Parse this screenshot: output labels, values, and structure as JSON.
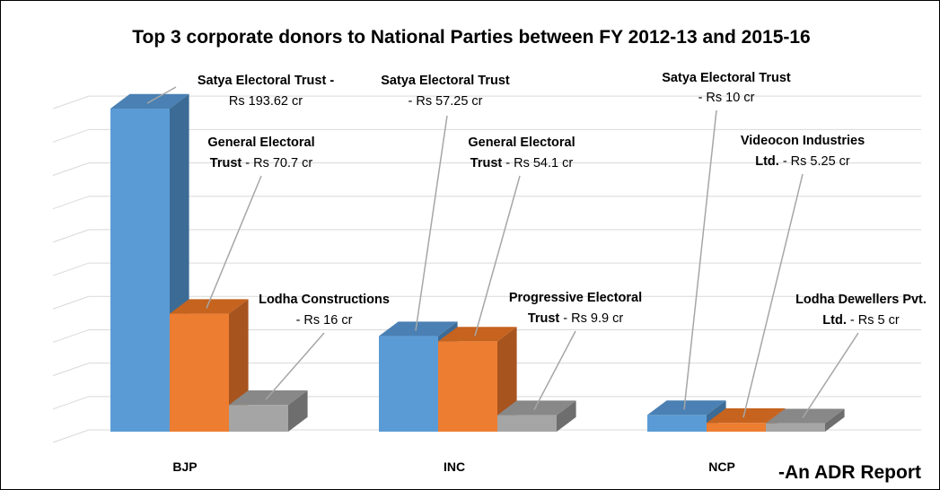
{
  "chart_data": {
    "type": "bar",
    "title": "Top 3 corporate donors to National Parties between FY 2012-13 and 2015-16",
    "categories": [
      "BJP",
      "INC",
      "NCP"
    ],
    "xlabel": "",
    "ylabel": "",
    "ylim": [
      0,
      200
    ],
    "grid": true,
    "legend": "none",
    "series": [
      {
        "values": [
          193.62,
          57.25,
          10
        ]
      },
      {
        "values": [
          70.7,
          54.1,
          5.25
        ]
      },
      {
        "values": [
          16,
          9.9,
          5
        ]
      }
    ],
    "annotations": [
      {
        "category": "BJP",
        "series": 0,
        "bold": "Satya Electoral Trust",
        "text": " - Rs 193.62 cr"
      },
      {
        "category": "BJP",
        "series": 1,
        "bold": "General Electoral Trust",
        "text": " - Rs 70.7 cr"
      },
      {
        "category": "BJP",
        "series": 2,
        "bold": "Lodha Constructions",
        "text": " - Rs 16 cr"
      },
      {
        "category": "INC",
        "series": 0,
        "bold": "Satya Electoral Trust",
        "text": " - Rs 57.25 cr"
      },
      {
        "category": "INC",
        "series": 1,
        "bold": "General Electoral Trust",
        "text": " - Rs 54.1 cr"
      },
      {
        "category": "INC",
        "series": 2,
        "bold": "Progressive Electoral Trust",
        "text": " - Rs 9.9 cr"
      },
      {
        "category": "NCP",
        "series": 0,
        "bold": "Satya Electoral Trust",
        "text": " - Rs 10 cr"
      },
      {
        "category": "NCP",
        "series": 1,
        "bold": "Videocon Industries Ltd.",
        "text": " - Rs 5.25 cr"
      },
      {
        "category": "NCP",
        "series": 2,
        "bold": "Lodha Dewellers Pvt. Ltd.",
        "text": " - Rs 5 cr"
      }
    ]
  },
  "footer": "-An ADR Report",
  "colors": {
    "series": [
      "#5b9bd5",
      "#ed7d31",
      "#a5a5a5"
    ],
    "series_dark": [
      "#3c6b95",
      "#a8541f",
      "#6e6e6e"
    ],
    "series_top": [
      "#4a80b3",
      "#c5631f",
      "#888888"
    ],
    "grid": "#d9d9d9",
    "leader": "#a6a6a6"
  }
}
